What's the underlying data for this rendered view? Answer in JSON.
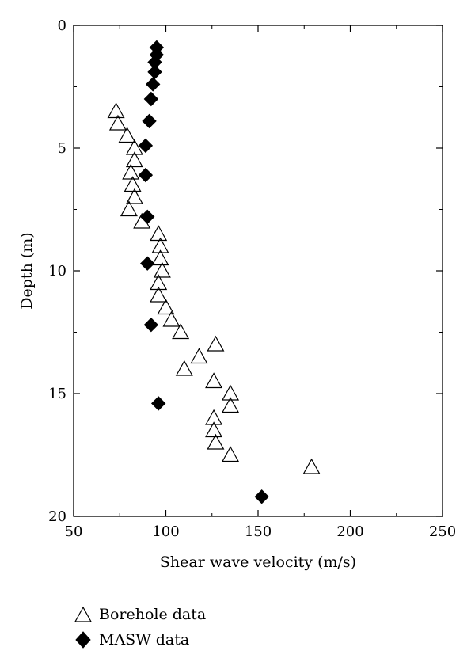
{
  "chart_data": {
    "type": "scatter",
    "title": "",
    "xlabel": "Shear wave velocity (m/s)",
    "ylabel": "Depth (m)",
    "xlim": [
      50,
      250
    ],
    "ylim": [
      0,
      20
    ],
    "y_inverted": true,
    "x_ticks": [
      "50",
      "100",
      "150",
      "200",
      "250"
    ],
    "y_ticks": [
      "0",
      "5",
      "10",
      "15",
      "20"
    ],
    "legend_position": "bottom-left",
    "series": [
      {
        "name": "Borehole data",
        "marker": "open-triangle",
        "color": "#000000",
        "points": [
          {
            "x": 73,
            "y": 3.5
          },
          {
            "x": 74,
            "y": 4.0
          },
          {
            "x": 79,
            "y": 4.5
          },
          {
            "x": 83,
            "y": 5.0
          },
          {
            "x": 83,
            "y": 5.5
          },
          {
            "x": 81,
            "y": 6.0
          },
          {
            "x": 82,
            "y": 6.5
          },
          {
            "x": 83,
            "y": 7.0
          },
          {
            "x": 80,
            "y": 7.5
          },
          {
            "x": 87,
            "y": 8.0
          },
          {
            "x": 96,
            "y": 8.5
          },
          {
            "x": 97,
            "y": 9.0
          },
          {
            "x": 97,
            "y": 9.5
          },
          {
            "x": 98,
            "y": 10.0
          },
          {
            "x": 96,
            "y": 10.5
          },
          {
            "x": 96,
            "y": 11.0
          },
          {
            "x": 100,
            "y": 11.5
          },
          {
            "x": 103,
            "y": 12.0
          },
          {
            "x": 108,
            "y": 12.5
          },
          {
            "x": 127,
            "y": 13.0
          },
          {
            "x": 118,
            "y": 13.5
          },
          {
            "x": 110,
            "y": 14.0
          },
          {
            "x": 126,
            "y": 14.5
          },
          {
            "x": 135,
            "y": 15.0
          },
          {
            "x": 135,
            "y": 15.5
          },
          {
            "x": 126,
            "y": 16.0
          },
          {
            "x": 126,
            "y": 16.5
          },
          {
            "x": 127,
            "y": 17.0
          },
          {
            "x": 135,
            "y": 17.5
          },
          {
            "x": 179,
            "y": 18.0
          }
        ]
      },
      {
        "name": "MASW data",
        "marker": "filled-diamond",
        "color": "#000000",
        "points": [
          {
            "x": 95,
            "y": 0.9
          },
          {
            "x": 95,
            "y": 1.2
          },
          {
            "x": 94,
            "y": 1.5
          },
          {
            "x": 94,
            "y": 1.9
          },
          {
            "x": 93,
            "y": 2.4
          },
          {
            "x": 92,
            "y": 3.0
          },
          {
            "x": 91,
            "y": 3.9
          },
          {
            "x": 89,
            "y": 4.9
          },
          {
            "x": 89,
            "y": 6.1
          },
          {
            "x": 90,
            "y": 7.8
          },
          {
            "x": 90,
            "y": 9.7
          },
          {
            "x": 92,
            "y": 12.2
          },
          {
            "x": 96,
            "y": 15.4
          },
          {
            "x": 152,
            "y": 19.2
          }
        ]
      }
    ]
  }
}
